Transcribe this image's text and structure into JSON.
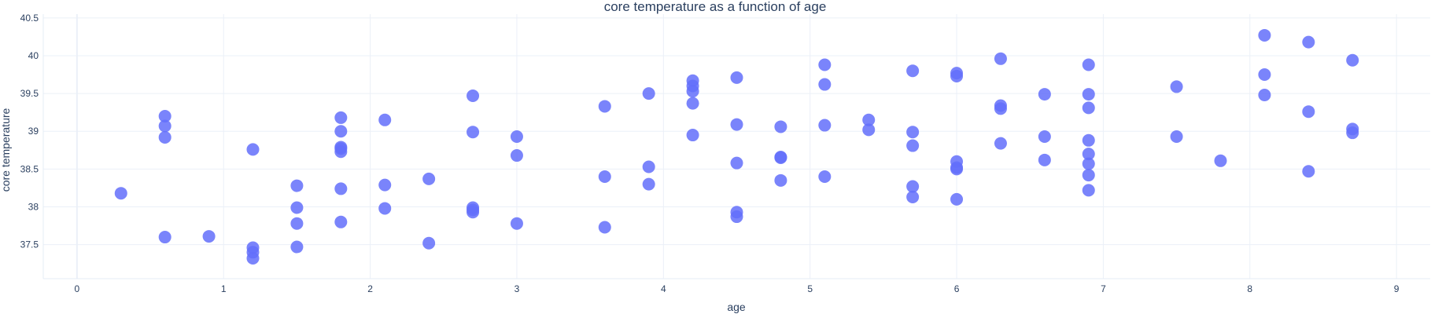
{
  "chart_data": {
    "type": "scatter",
    "title": "core temperature as a function of age",
    "xlabel": "age",
    "ylabel": "core temperature",
    "xlim": [
      -0.23,
      9.23
    ],
    "ylim": [
      37.05,
      40.55
    ],
    "xticks": [
      0,
      1,
      2,
      3,
      4,
      5,
      6,
      7,
      8,
      9
    ],
    "yticks": [
      37.5,
      38,
      38.5,
      39,
      39.5,
      40,
      40.5
    ],
    "grid": true,
    "marker_color": "#636efa",
    "series": [
      {
        "points": [
          [
            0.3,
            38.18
          ],
          [
            0.6,
            39.2
          ],
          [
            0.6,
            39.07
          ],
          [
            0.6,
            38.92
          ],
          [
            0.6,
            37.6
          ],
          [
            0.9,
            37.61
          ],
          [
            1.2,
            38.76
          ],
          [
            1.2,
            37.46
          ],
          [
            1.2,
            37.4
          ],
          [
            1.2,
            37.32
          ],
          [
            1.5,
            38.28
          ],
          [
            1.5,
            37.99
          ],
          [
            1.5,
            37.78
          ],
          [
            1.5,
            37.47
          ],
          [
            1.8,
            39.18
          ],
          [
            1.8,
            39.0
          ],
          [
            1.8,
            38.79
          ],
          [
            1.8,
            38.77
          ],
          [
            1.8,
            38.73
          ],
          [
            1.8,
            38.24
          ],
          [
            1.8,
            37.8
          ],
          [
            2.1,
            39.15
          ],
          [
            2.1,
            38.29
          ],
          [
            2.1,
            37.98
          ],
          [
            2.4,
            38.37
          ],
          [
            2.4,
            37.52
          ],
          [
            2.7,
            39.47
          ],
          [
            2.7,
            38.99
          ],
          [
            2.7,
            37.99
          ],
          [
            2.7,
            37.96
          ],
          [
            2.7,
            37.93
          ],
          [
            3.0,
            38.93
          ],
          [
            3.0,
            38.68
          ],
          [
            3.0,
            37.78
          ],
          [
            3.6,
            39.33
          ],
          [
            3.6,
            38.4
          ],
          [
            3.6,
            37.73
          ],
          [
            3.9,
            39.5
          ],
          [
            3.9,
            38.53
          ],
          [
            3.9,
            38.3
          ],
          [
            4.2,
            39.67
          ],
          [
            4.2,
            39.6
          ],
          [
            4.2,
            39.53
          ],
          [
            4.2,
            39.37
          ],
          [
            4.2,
            38.95
          ],
          [
            4.5,
            39.71
          ],
          [
            4.5,
            39.09
          ],
          [
            4.5,
            38.58
          ],
          [
            4.5,
            37.93
          ],
          [
            4.5,
            37.87
          ],
          [
            4.8,
            39.06
          ],
          [
            4.8,
            38.66
          ],
          [
            4.8,
            38.65
          ],
          [
            4.8,
            38.35
          ],
          [
            5.1,
            39.88
          ],
          [
            5.1,
            39.62
          ],
          [
            5.1,
            39.08
          ],
          [
            5.1,
            38.4
          ],
          [
            5.4,
            39.15
          ],
          [
            5.4,
            39.02
          ],
          [
            5.7,
            39.8
          ],
          [
            5.7,
            38.99
          ],
          [
            5.7,
            38.81
          ],
          [
            5.7,
            38.27
          ],
          [
            5.7,
            38.13
          ],
          [
            6.0,
            39.77
          ],
          [
            6.0,
            39.73
          ],
          [
            6.0,
            38.6
          ],
          [
            6.0,
            38.52
          ],
          [
            6.0,
            38.5
          ],
          [
            6.0,
            38.1
          ],
          [
            6.3,
            39.96
          ],
          [
            6.3,
            39.34
          ],
          [
            6.3,
            39.3
          ],
          [
            6.3,
            38.84
          ],
          [
            6.6,
            39.49
          ],
          [
            6.6,
            38.93
          ],
          [
            6.6,
            38.62
          ],
          [
            6.9,
            39.88
          ],
          [
            6.9,
            39.49
          ],
          [
            6.9,
            39.31
          ],
          [
            6.9,
            38.88
          ],
          [
            6.9,
            38.7
          ],
          [
            6.9,
            38.57
          ],
          [
            6.9,
            38.42
          ],
          [
            6.9,
            38.22
          ],
          [
            7.5,
            39.59
          ],
          [
            7.5,
            38.93
          ],
          [
            7.8,
            38.61
          ],
          [
            8.1,
            40.27
          ],
          [
            8.1,
            39.75
          ],
          [
            8.1,
            39.48
          ],
          [
            8.4,
            40.18
          ],
          [
            8.4,
            39.26
          ],
          [
            8.4,
            38.47
          ],
          [
            8.7,
            39.94
          ],
          [
            8.7,
            39.03
          ],
          [
            8.7,
            38.98
          ]
        ]
      }
    ]
  }
}
